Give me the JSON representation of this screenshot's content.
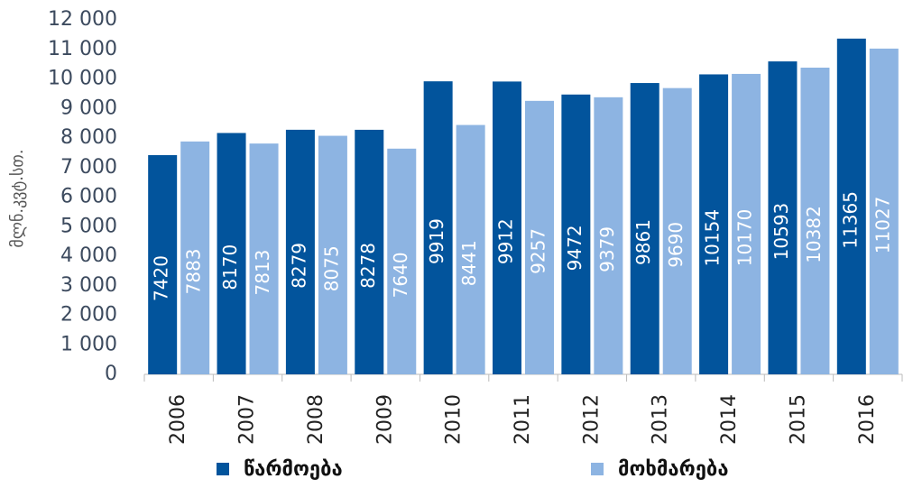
{
  "chart_data": {
    "type": "bar",
    "y_label": "მლნ.კვტ.სთ.",
    "categories": [
      "2006",
      "2007",
      "2008",
      "2009",
      "2010",
      "2011",
      "2012",
      "2013",
      "2014",
      "2015",
      "2016"
    ],
    "series": [
      {
        "name": "წარმოება",
        "color": "#02549c",
        "values": [
          7420,
          8170,
          8279,
          8278,
          9919,
          9912,
          9472,
          9861,
          10154,
          10593,
          11365
        ]
      },
      {
        "name": "მოხმარება",
        "color": "#8db4e2",
        "values": [
          7883,
          7813,
          8075,
          7640,
          8441,
          9257,
          9379,
          9690,
          10170,
          10382,
          11027
        ]
      }
    ],
    "ylim": [
      0,
      12000
    ],
    "yticks": [
      0,
      {
        "value": 1000,
        "label": "1 000"
      },
      {
        "value": 2000,
        "label": "2 000"
      },
      {
        "value": 3000,
        "label": "3 000"
      },
      {
        "value": 4000,
        "label": "4 000"
      },
      {
        "value": 5000,
        "label": "5 000"
      },
      {
        "value": 6000,
        "label": "6 000"
      },
      {
        "value": 7000,
        "label": "7 000"
      },
      {
        "value": 8000,
        "label": "8 000"
      },
      {
        "value": 9000,
        "label": "9 000"
      },
      {
        "value": 10000,
        "label": "10 000"
      },
      {
        "value": 11000,
        "label": "11 000"
      },
      {
        "value": 12000,
        "label": "12 000"
      }
    ],
    "grid": false,
    "legend": "bottom"
  }
}
